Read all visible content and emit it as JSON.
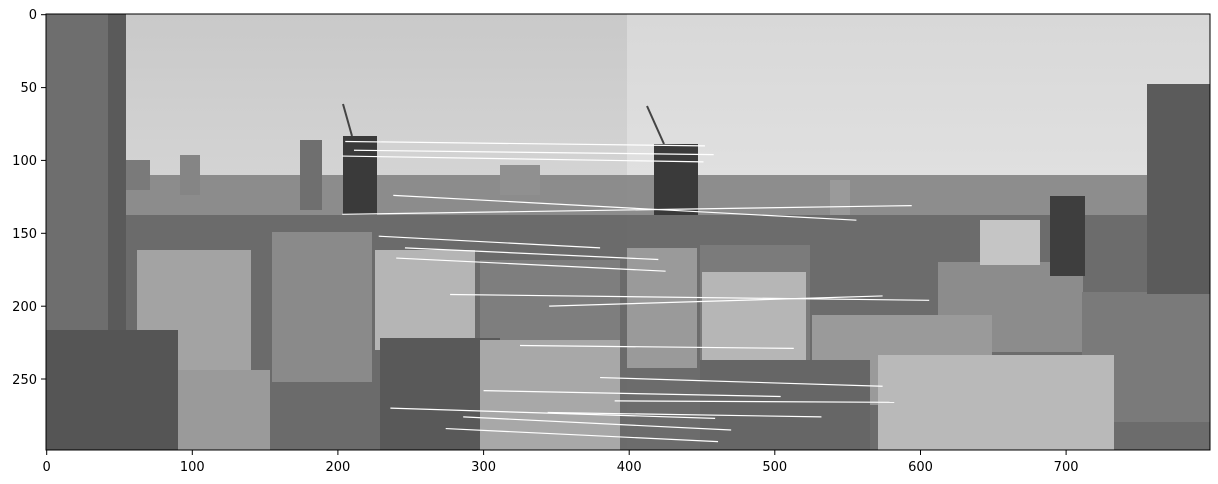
{
  "figure": {
    "image_description_kind": "grayscale stereo panorama pair with feature-match lines",
    "axes": {
      "xlim": [
        0,
        799
      ],
      "ylim": [
        299,
        0
      ],
      "x_ticks": [
        0,
        100,
        200,
        300,
        400,
        500,
        600,
        700
      ],
      "y_ticks": [
        0,
        50,
        100,
        150,
        200,
        250
      ],
      "x_tick_labels": [
        "0",
        "100",
        "200",
        "300",
        "400",
        "500",
        "600",
        "700"
      ],
      "y_tick_labels": [
        "0",
        "50",
        "100",
        "150",
        "200",
        "250"
      ]
    },
    "colors": {
      "match_line": "#ffffff",
      "axis": "#000000"
    }
  },
  "chart_data": {
    "type": "image",
    "x_range": [
      0,
      799
    ],
    "y_range": [
      0,
      299
    ],
    "image_split_x": 400,
    "matches": [
      {
        "x1": 205,
        "y1": 87,
        "x2": 452,
        "y2": 90
      },
      {
        "x1": 203,
        "y1": 97,
        "x2": 451,
        "y2": 101
      },
      {
        "x1": 211,
        "y1": 93,
        "x2": 458,
        "y2": 96
      },
      {
        "x1": 203,
        "y1": 137,
        "x2": 594,
        "y2": 131
      },
      {
        "x1": 238,
        "y1": 124,
        "x2": 556,
        "y2": 141
      },
      {
        "x1": 228,
        "y1": 152,
        "x2": 380,
        "y2": 160
      },
      {
        "x1": 246,
        "y1": 160,
        "x2": 420,
        "y2": 168
      },
      {
        "x1": 240,
        "y1": 167,
        "x2": 425,
        "y2": 176
      },
      {
        "x1": 277,
        "y1": 192,
        "x2": 606,
        "y2": 196
      },
      {
        "x1": 345,
        "y1": 200,
        "x2": 574,
        "y2": 193
      },
      {
        "x1": 325,
        "y1": 227,
        "x2": 513,
        "y2": 229
      },
      {
        "x1": 380,
        "y1": 249,
        "x2": 574,
        "y2": 255
      },
      {
        "x1": 390,
        "y1": 265,
        "x2": 582,
        "y2": 266
      },
      {
        "x1": 236,
        "y1": 270,
        "x2": 459,
        "y2": 277
      },
      {
        "x1": 274,
        "y1": 284,
        "x2": 461,
        "y2": 293
      },
      {
        "x1": 300,
        "y1": 258,
        "x2": 504,
        "y2": 262
      },
      {
        "x1": 344,
        "y1": 273,
        "x2": 532,
        "y2": 276
      },
      {
        "x1": 286,
        "y1": 276,
        "x2": 470,
        "y2": 285
      }
    ]
  }
}
